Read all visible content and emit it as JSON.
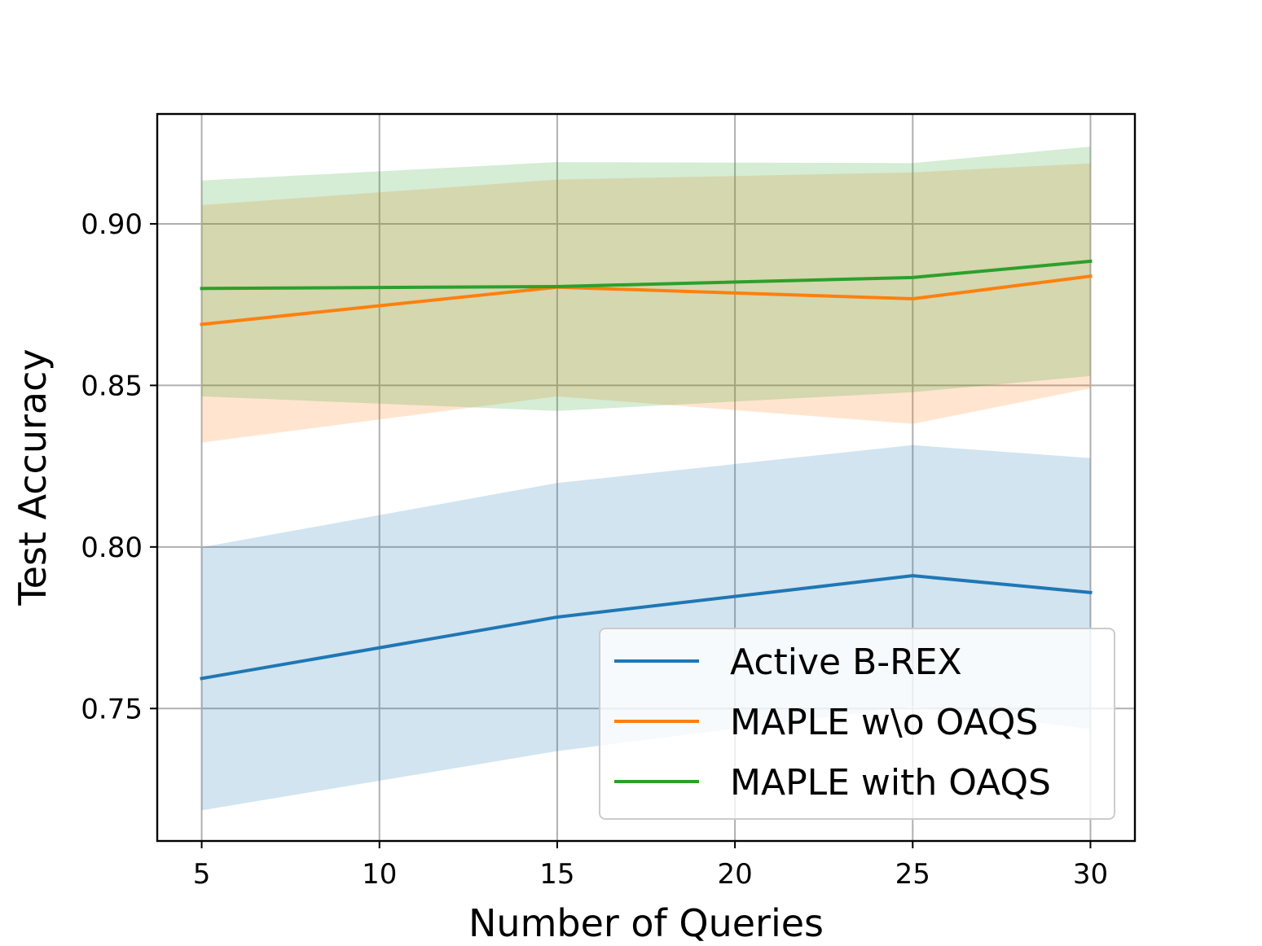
{
  "chart_data": {
    "type": "line",
    "title": "",
    "xlabel": "Number of Queries",
    "ylabel": "Test Accuracy",
    "x": [
      5,
      15,
      25,
      30
    ],
    "xticks": [
      5,
      10,
      15,
      20,
      25,
      30
    ],
    "xtick_labels": [
      "5",
      "10",
      "15",
      "20",
      "25",
      "30"
    ],
    "yticks": [
      0.75,
      0.8,
      0.85,
      0.9
    ],
    "ytick_labels": [
      "0.75",
      "0.80",
      "0.85",
      "0.90"
    ],
    "xlim": [
      3.75,
      31.25
    ],
    "ylim": [
      0.709,
      0.934
    ],
    "grid": true,
    "legend_position": "lower-right",
    "series": [
      {
        "name": "Active B-REX",
        "color": "#1f77b4",
        "values": [
          0.7593,
          0.7783,
          0.7911,
          0.7859
        ],
        "lower": [
          0.7185,
          0.7368,
          0.7507,
          0.7436
        ],
        "upper": [
          0.7999,
          0.8198,
          0.8315,
          0.8275
        ]
      },
      {
        "name": "MAPLE w\\o OAQS",
        "color": "#ff7f0e",
        "values": [
          0.8689,
          0.8804,
          0.8768,
          0.8838
        ],
        "lower": [
          0.8323,
          0.8466,
          0.8381,
          0.8491
        ],
        "upper": [
          0.9058,
          0.9137,
          0.9159,
          0.9187
        ]
      },
      {
        "name": "MAPLE with OAQS",
        "color": "#2ca02c",
        "values": [
          0.88,
          0.8806,
          0.8834,
          0.8884
        ],
        "lower": [
          0.8466,
          0.8421,
          0.8479,
          0.8529
        ],
        "upper": [
          0.9134,
          0.9191,
          0.9188,
          0.9239
        ]
      }
    ]
  }
}
